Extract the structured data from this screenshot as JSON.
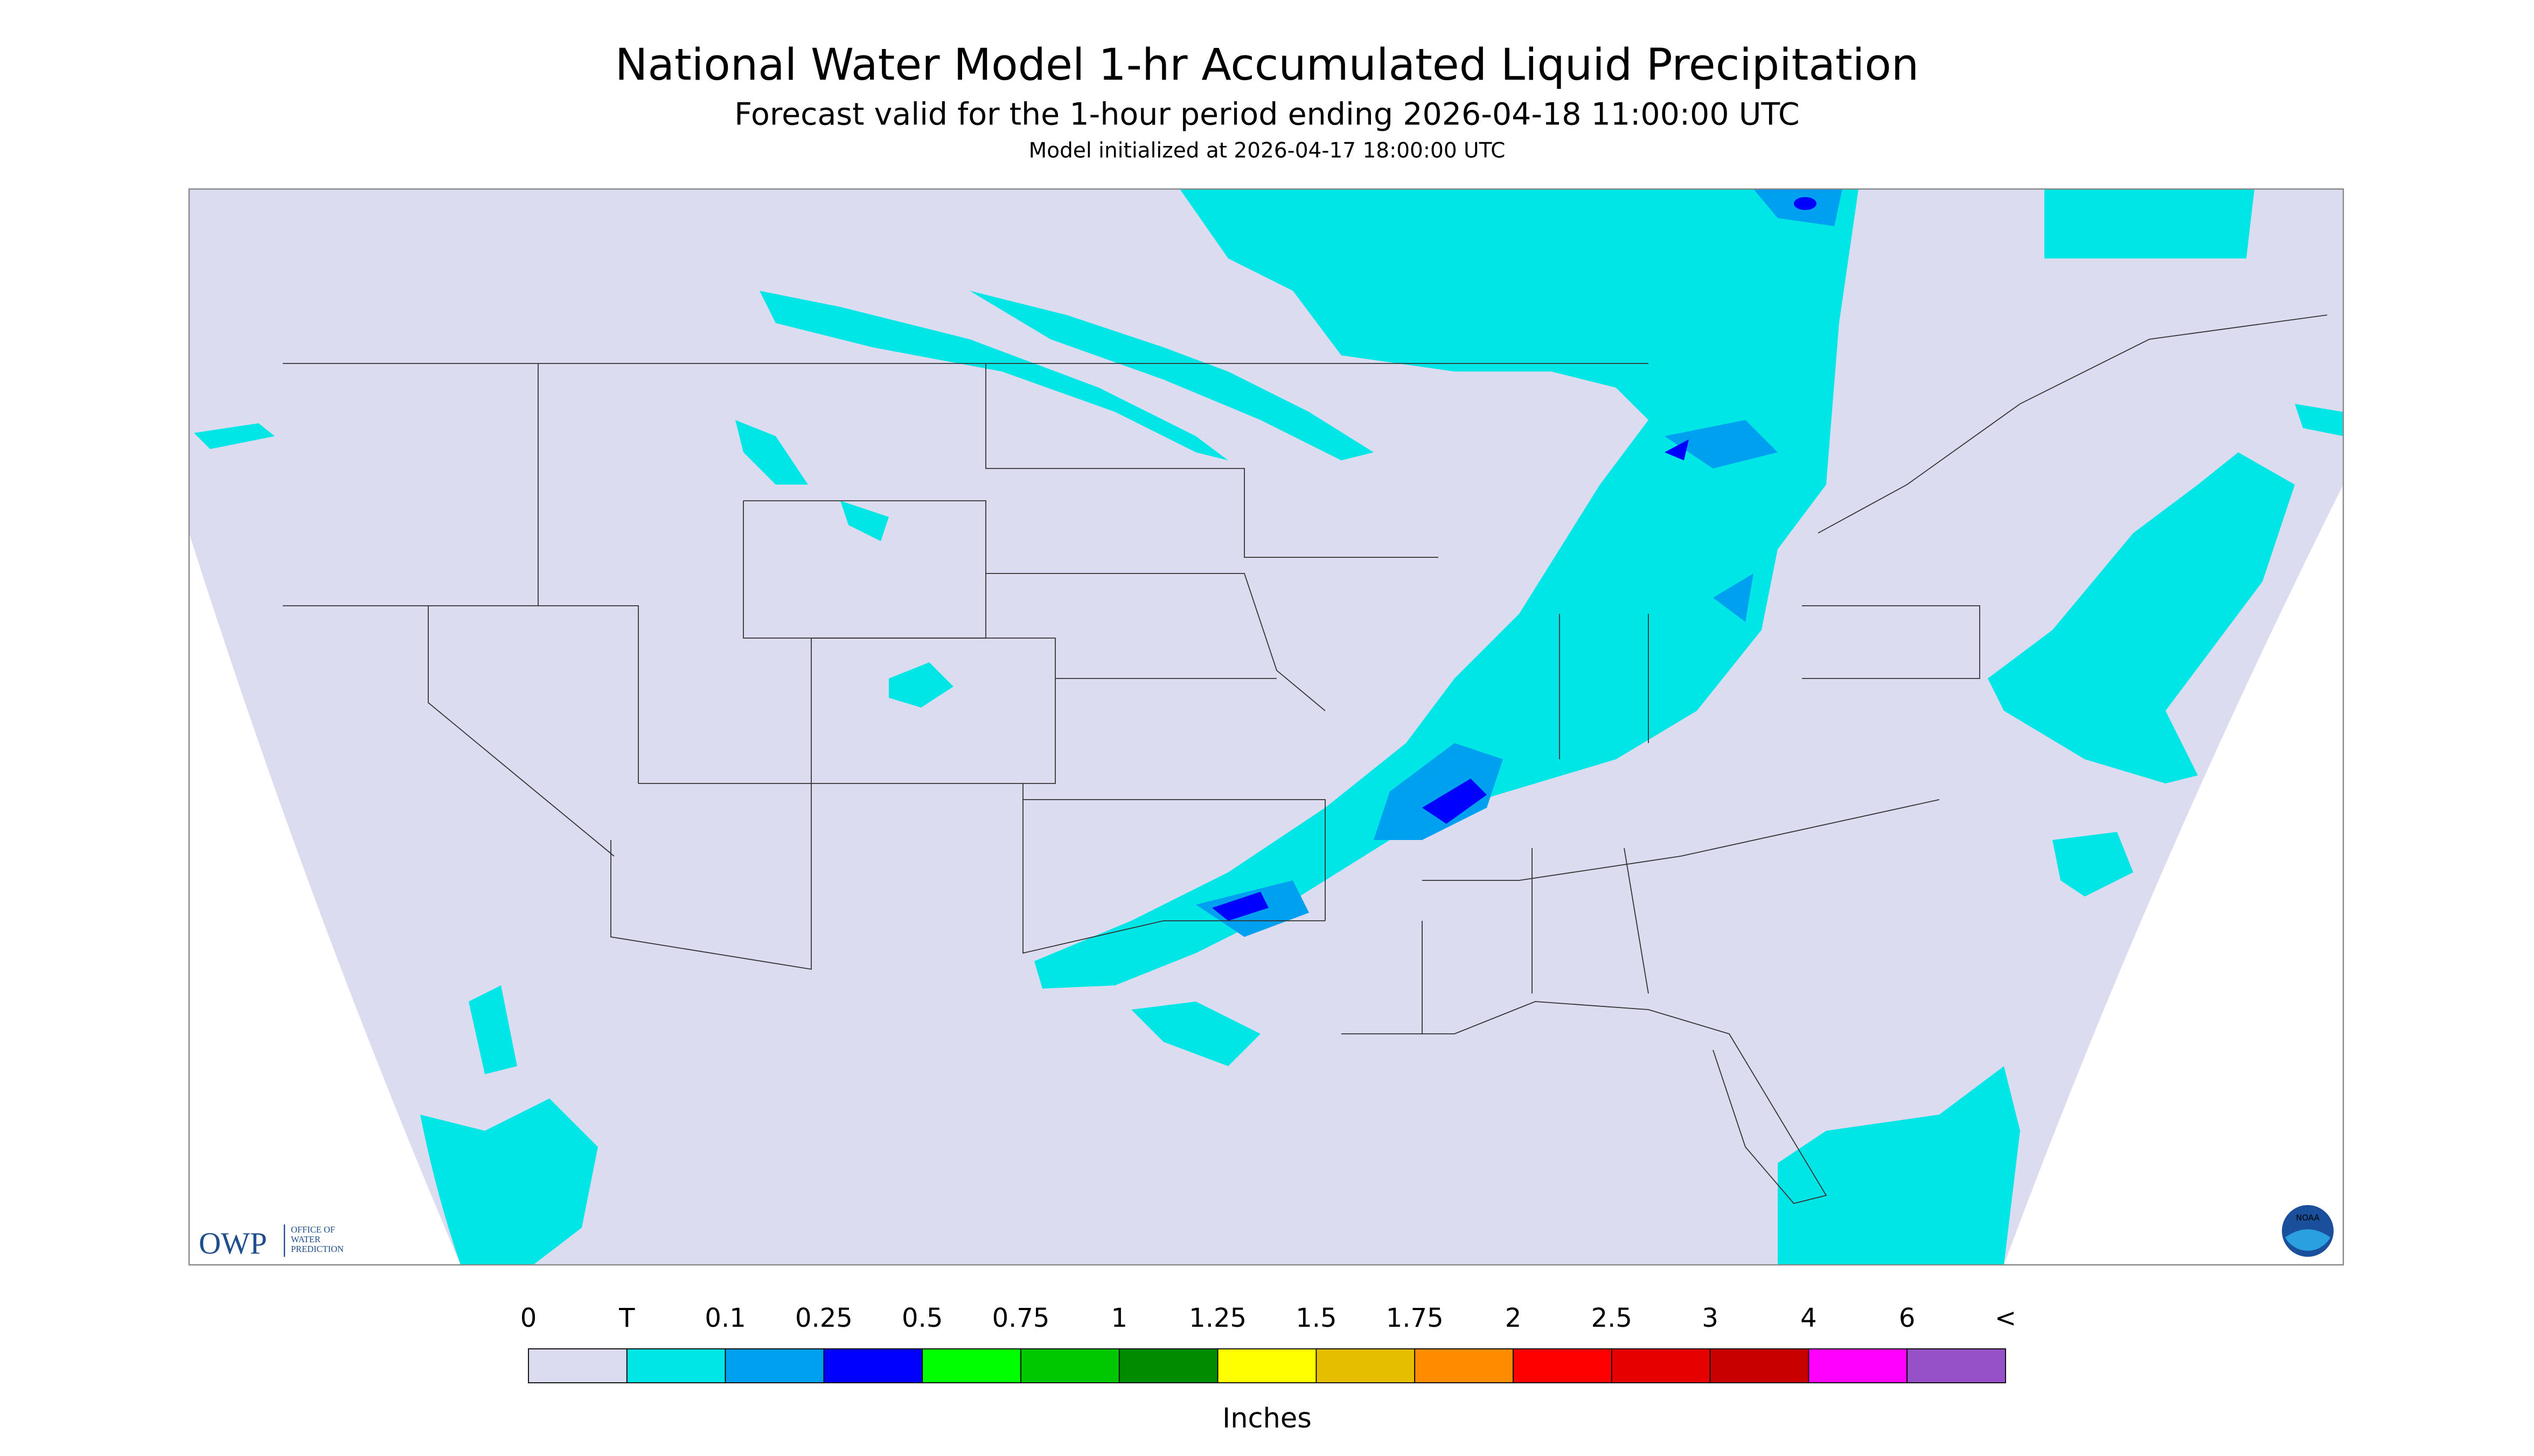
{
  "header": {
    "title": "National Water Model 1-hr Accumulated Liquid Precipitation",
    "subtitle": "Forecast valid for the 1-hour period ending 2026-04-18 11:00:00 UTC",
    "note": "Model initialized at 2026-04-17 18:00:00 UTC"
  },
  "legend": {
    "labels": [
      "0",
      "T",
      "0.1",
      "0.25",
      "0.5",
      "0.75",
      "1",
      "1.25",
      "1.5",
      "1.75",
      "2",
      "2.5",
      "3",
      "4",
      "6",
      "<"
    ],
    "colors": [
      "#dcdcf0",
      "#00e6e6",
      "#00a0f0",
      "#0000ff",
      "#00ff00",
      "#00c800",
      "#008c00",
      "#ffff00",
      "#e6be00",
      "#ff8c00",
      "#ff0000",
      "#e60000",
      "#c80000",
      "#ff00ff",
      "#9650c8"
    ],
    "unit": "Inches"
  },
  "logos": {
    "owp": "OWP",
    "owp_lines": [
      "OFFICE OF",
      "WATER",
      "PREDICTION"
    ],
    "noaa": "NOAA"
  }
}
